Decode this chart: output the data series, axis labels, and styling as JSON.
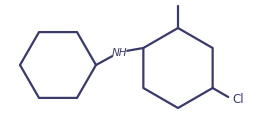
{
  "line_color": "#3a3a6a",
  "line_width": 1.6,
  "bg_color": "#ffffff",
  "figsize": [
    2.56,
    1.31
  ],
  "dpi": 100
}
